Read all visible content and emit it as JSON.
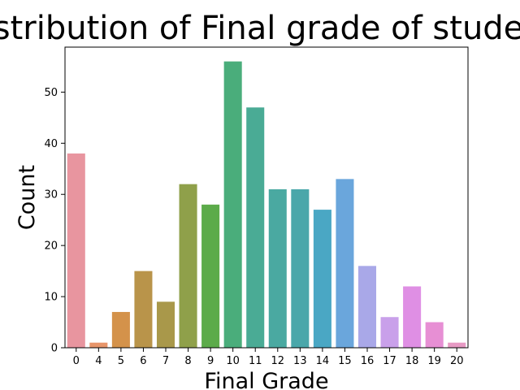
{
  "chart_data": {
    "type": "bar",
    "title": "Distribution of Final grade of students",
    "xlabel": "Final Grade",
    "ylabel": "Count",
    "categories": [
      "0",
      "4",
      "5",
      "6",
      "7",
      "8",
      "9",
      "10",
      "11",
      "12",
      "13",
      "14",
      "15",
      "16",
      "17",
      "18",
      "19",
      "20"
    ],
    "values": [
      38,
      1,
      7,
      15,
      9,
      32,
      28,
      56,
      47,
      31,
      31,
      27,
      33,
      16,
      6,
      12,
      5,
      1
    ],
    "yticks": [
      0,
      10,
      20,
      30,
      40,
      50
    ],
    "ylim": [
      0,
      58.8
    ],
    "grid": false,
    "colors": [
      "#e8959f",
      "#e7956a",
      "#d4924a",
      "#b9944a",
      "#a9984a",
      "#8fa04a",
      "#5cab4a",
      "#4aad7b",
      "#4aab95",
      "#4aa9a1",
      "#4aa7aa",
      "#4aa7c4",
      "#6aa6dc",
      "#a9a8e8",
      "#c9a0ea",
      "#df8fe4",
      "#e78fd4",
      "#e79ac4"
    ]
  }
}
